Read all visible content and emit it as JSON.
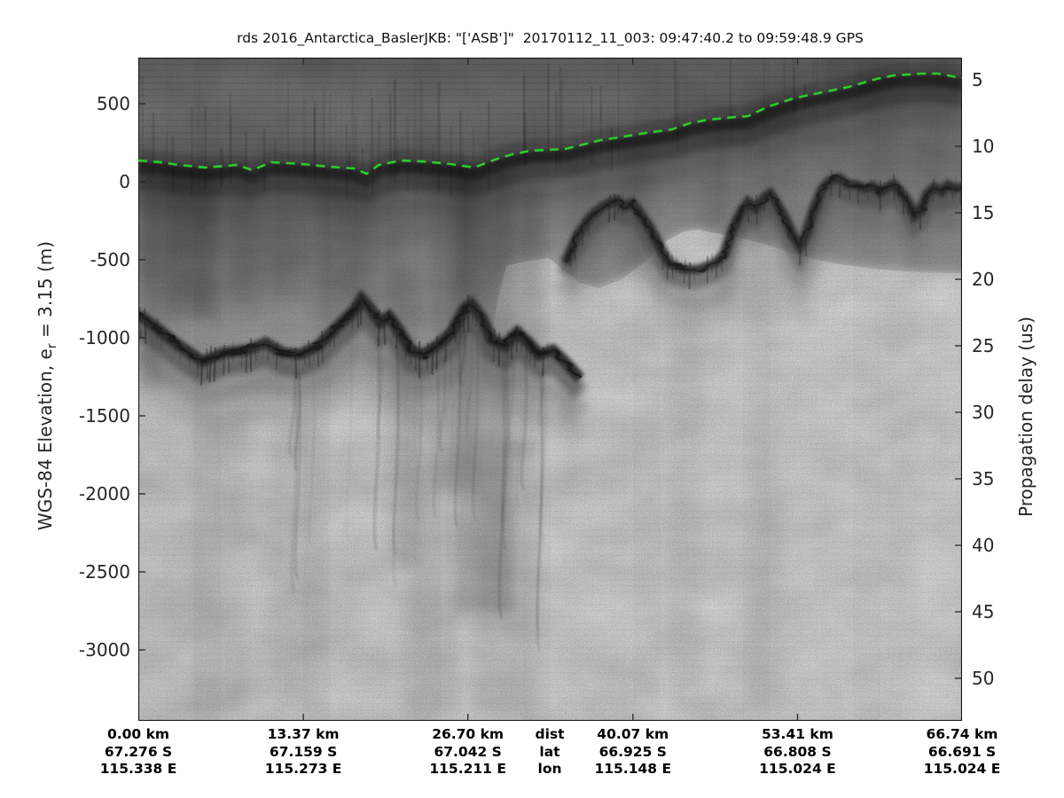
{
  "figure": {
    "title": "rds 2016_Antarctica_BaslerJKB: \"['ASB']\"  20170112_11_003: 09:47:40.2 to 09:59:48.9 GPS"
  },
  "axes": {
    "left": {
      "label_prefix": "WGS-84 Elevation, e",
      "label_sub": "r",
      "label_suffix": " = 3.15 (m)",
      "ticks": [
        "500",
        "0",
        "-500",
        "-1000",
        "-1500",
        "-2000",
        "-2500",
        "-3000"
      ],
      "tick_values": [
        500,
        0,
        -500,
        -1000,
        -1500,
        -2000,
        -2500,
        -3000
      ]
    },
    "right": {
      "label": "Propagation delay (us)",
      "ticks": [
        "5",
        "10",
        "15",
        "20",
        "25",
        "30",
        "35",
        "40",
        "45",
        "50"
      ],
      "tick_values": [
        5,
        10,
        15,
        20,
        25,
        30,
        35,
        40,
        45,
        50
      ]
    },
    "bottom": {
      "header_labels": [
        "dist",
        "lat",
        "lon"
      ],
      "columns": [
        {
          "km": 0,
          "km_label": "0.00 km",
          "lat": "67.276 S",
          "lon": "115.338 E"
        },
        {
          "km": 13.37,
          "km_label": "13.37 km",
          "lat": "67.159 S",
          "lon": "115.273 E"
        },
        {
          "km": 26.7,
          "km_label": "26.70 km",
          "lat": "67.042 S",
          "lon": "115.211 E"
        },
        {
          "km": 40.07,
          "km_label": "40.07 km",
          "lat": "66.925 S",
          "lon": "115.148 E"
        },
        {
          "km": 53.41,
          "km_label": "53.41 km",
          "lat": "66.808 S",
          "lon": "115.024 E"
        },
        {
          "km": 66.74,
          "km_label": "66.74 km",
          "lat": "66.691 S",
          "lon": "115.024 E"
        }
      ]
    }
  },
  "chart_data": {
    "type": "heatmap",
    "subtype": "radargram",
    "description": "Grayscale airborne ice-penetrating radar echogram with picked surface shown as dashed green line",
    "x_axis": {
      "label": "dist (km)",
      "range": [
        0,
        66.74
      ],
      "ticks_km": [
        0,
        13.37,
        26.7,
        40.07,
        53.41,
        66.74
      ]
    },
    "y_left_axis": {
      "label": "WGS-84 Elevation (m)",
      "visible_range": [
        795,
        -3455
      ],
      "ticks": [
        500,
        0,
        -500,
        -1000,
        -1500,
        -2000,
        -2500,
        -3000
      ]
    },
    "y_right_axis": {
      "label": "Propagation delay (us)",
      "visible_range": [
        3.3,
        53.2
      ],
      "ticks": [
        5,
        10,
        15,
        20,
        25,
        30,
        35,
        40,
        45,
        50
      ]
    },
    "surface_pick_color": "#2ccc2c",
    "surface_profile_km_m": [
      [
        0,
        125
      ],
      [
        1.8,
        114
      ],
      [
        3.2,
        97
      ],
      [
        5.4,
        80
      ],
      [
        7.2,
        91
      ],
      [
        8.0,
        97
      ],
      [
        9.2,
        63
      ],
      [
        10.8,
        114
      ],
      [
        13.3,
        102
      ],
      [
        15.4,
        85
      ],
      [
        17.5,
        74
      ],
      [
        18.5,
        40
      ],
      [
        19.5,
        97
      ],
      [
        21.3,
        125
      ],
      [
        23.1,
        119
      ],
      [
        25.3,
        102
      ],
      [
        27.2,
        80
      ],
      [
        28.9,
        131
      ],
      [
        30.3,
        165
      ],
      [
        31.8,
        188
      ],
      [
        34.6,
        199
      ],
      [
        37.5,
        256
      ],
      [
        38.9,
        273
      ],
      [
        41.1,
        301
      ],
      [
        43.2,
        324
      ],
      [
        44.7,
        364
      ],
      [
        46.1,
        386
      ],
      [
        48.3,
        403
      ],
      [
        49.4,
        409
      ],
      [
        51.1,
        472
      ],
      [
        53.3,
        528
      ],
      [
        55.5,
        563
      ],
      [
        57.6,
        597
      ],
      [
        59.8,
        648
      ],
      [
        61.2,
        670
      ],
      [
        63.4,
        682
      ],
      [
        64.8,
        682
      ],
      [
        66.74,
        653
      ]
    ],
    "bed_left_profile_km_m": [
      [
        0.0,
        -852
      ],
      [
        1.3,
        -926
      ],
      [
        3.1,
        -1040
      ],
      [
        5.2,
        -1153
      ],
      [
        7.0,
        -1097
      ],
      [
        8.8,
        -1080
      ],
      [
        10.3,
        -1034
      ],
      [
        11.7,
        -1097
      ],
      [
        13.1,
        -1108
      ],
      [
        14.6,
        -1051
      ],
      [
        16.0,
        -938
      ],
      [
        17.5,
        -824
      ],
      [
        18.1,
        -750
      ],
      [
        18.8,
        -813
      ],
      [
        19.6,
        -903
      ],
      [
        20.3,
        -864
      ],
      [
        21.1,
        -949
      ],
      [
        22.1,
        -1080
      ],
      [
        23.1,
        -1108
      ],
      [
        24.3,
        -1045
      ],
      [
        25.4,
        -966
      ],
      [
        26.4,
        -818
      ],
      [
        27.0,
        -784
      ],
      [
        27.9,
        -881
      ],
      [
        28.6,
        -1011
      ],
      [
        29.7,
        -1051
      ],
      [
        30.7,
        -966
      ],
      [
        31.5,
        -1023
      ],
      [
        32.5,
        -1108
      ],
      [
        33.6,
        -1080
      ],
      [
        34.7,
        -1165
      ],
      [
        35.8,
        -1261
      ]
    ],
    "bed_right_profile_km_m": [
      [
        34.6,
        -523
      ],
      [
        35.6,
        -341
      ],
      [
        36.6,
        -227
      ],
      [
        37.6,
        -159
      ],
      [
        38.3,
        -131
      ],
      [
        38.8,
        -119
      ],
      [
        39.4,
        -159
      ],
      [
        40.0,
        -136
      ],
      [
        40.7,
        -210
      ],
      [
        41.5,
        -301
      ],
      [
        42.3,
        -426
      ],
      [
        43.0,
        -523
      ],
      [
        44.2,
        -563
      ],
      [
        45.4,
        -563
      ],
      [
        46.7,
        -523
      ],
      [
        47.5,
        -466
      ],
      [
        48.1,
        -318
      ],
      [
        48.9,
        -182
      ],
      [
        49.4,
        -131
      ],
      [
        50.0,
        -170
      ],
      [
        50.8,
        -97
      ],
      [
        51.2,
        -74
      ],
      [
        51.7,
        -136
      ],
      [
        52.4,
        -233
      ],
      [
        53.0,
        -341
      ],
      [
        53.6,
        -415
      ],
      [
        54.1,
        -341
      ],
      [
        54.7,
        -188
      ],
      [
        55.4,
        -45
      ],
      [
        56.0,
        6
      ],
      [
        56.8,
        23
      ],
      [
        57.5,
        -17
      ],
      [
        58.2,
        -23
      ],
      [
        58.9,
        -45
      ],
      [
        59.5,
        -28
      ],
      [
        60.1,
        -68
      ],
      [
        60.6,
        -40
      ],
      [
        61.2,
        -17
      ],
      [
        61.8,
        -68
      ],
      [
        62.4,
        -131
      ],
      [
        62.9,
        -216
      ],
      [
        63.4,
        -182
      ],
      [
        63.9,
        -80
      ],
      [
        64.5,
        -34
      ],
      [
        65.1,
        -63
      ],
      [
        65.6,
        -23
      ],
      [
        66.2,
        -45
      ],
      [
        66.74,
        -34
      ]
    ]
  },
  "colors": {
    "figure_bg": "#ffffff",
    "plot_bg": "#e9e9e9",
    "air_gray": "#8f8f8f",
    "surface_band": "#2a2a2a",
    "bed_dark": "#3a3a3a",
    "tick_text": "#262626",
    "bottom_text": "#000000"
  }
}
